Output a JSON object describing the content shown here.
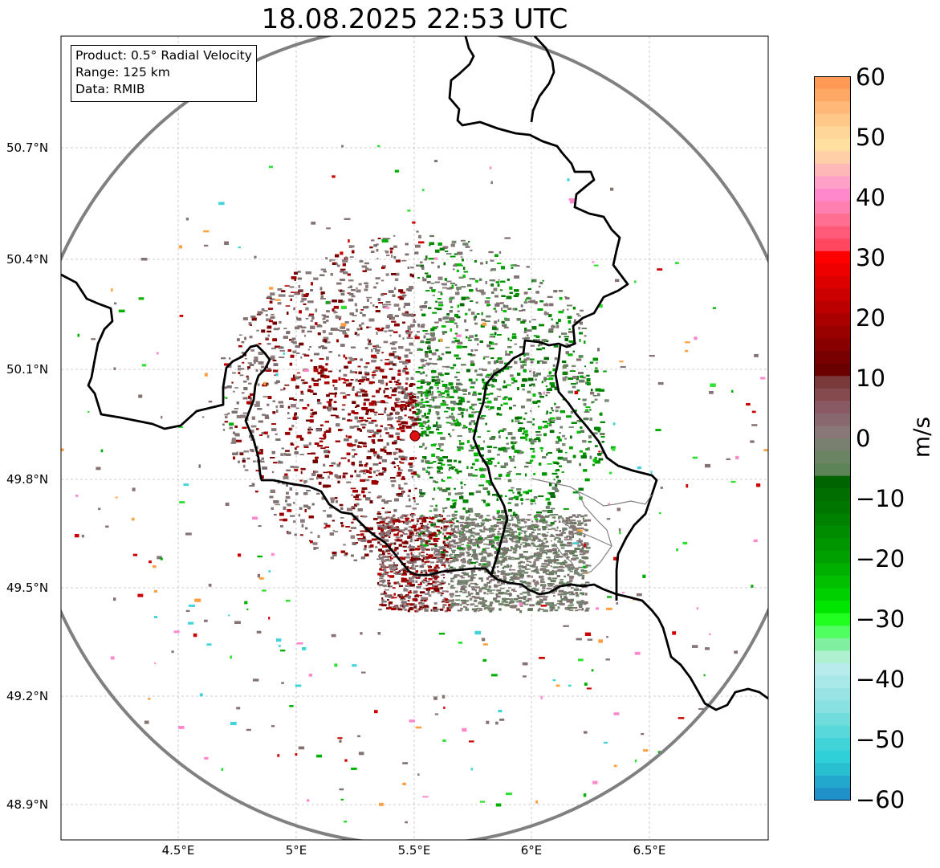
{
  "title": "18.08.2025 22:53 UTC",
  "info_box": {
    "product": "Product: 0.5° Radial Velocity",
    "range": "Range: 125 km",
    "data": "Data: RMIB"
  },
  "latitude_labels": [
    "50.7°N",
    "50.4°N",
    "50.1°N",
    "49.8°N",
    "49.5°N",
    "49.2°N",
    "48.9°N"
  ],
  "longitude_labels": [
    "4.5°E",
    "5°E",
    "5.5°E",
    "6°E",
    "6.5°E"
  ],
  "colorbar": {
    "unit": "m/s",
    "ticks": [
      "60",
      "50",
      "40",
      "30",
      "20",
      "10",
      "0",
      "−10",
      "−20",
      "−30",
      "−40",
      "−50",
      "−60"
    ],
    "min": -60,
    "max": 60
  },
  "radar_site_color": "#e01010",
  "range_ring_color": "#808080",
  "border_color": "#000000"
}
